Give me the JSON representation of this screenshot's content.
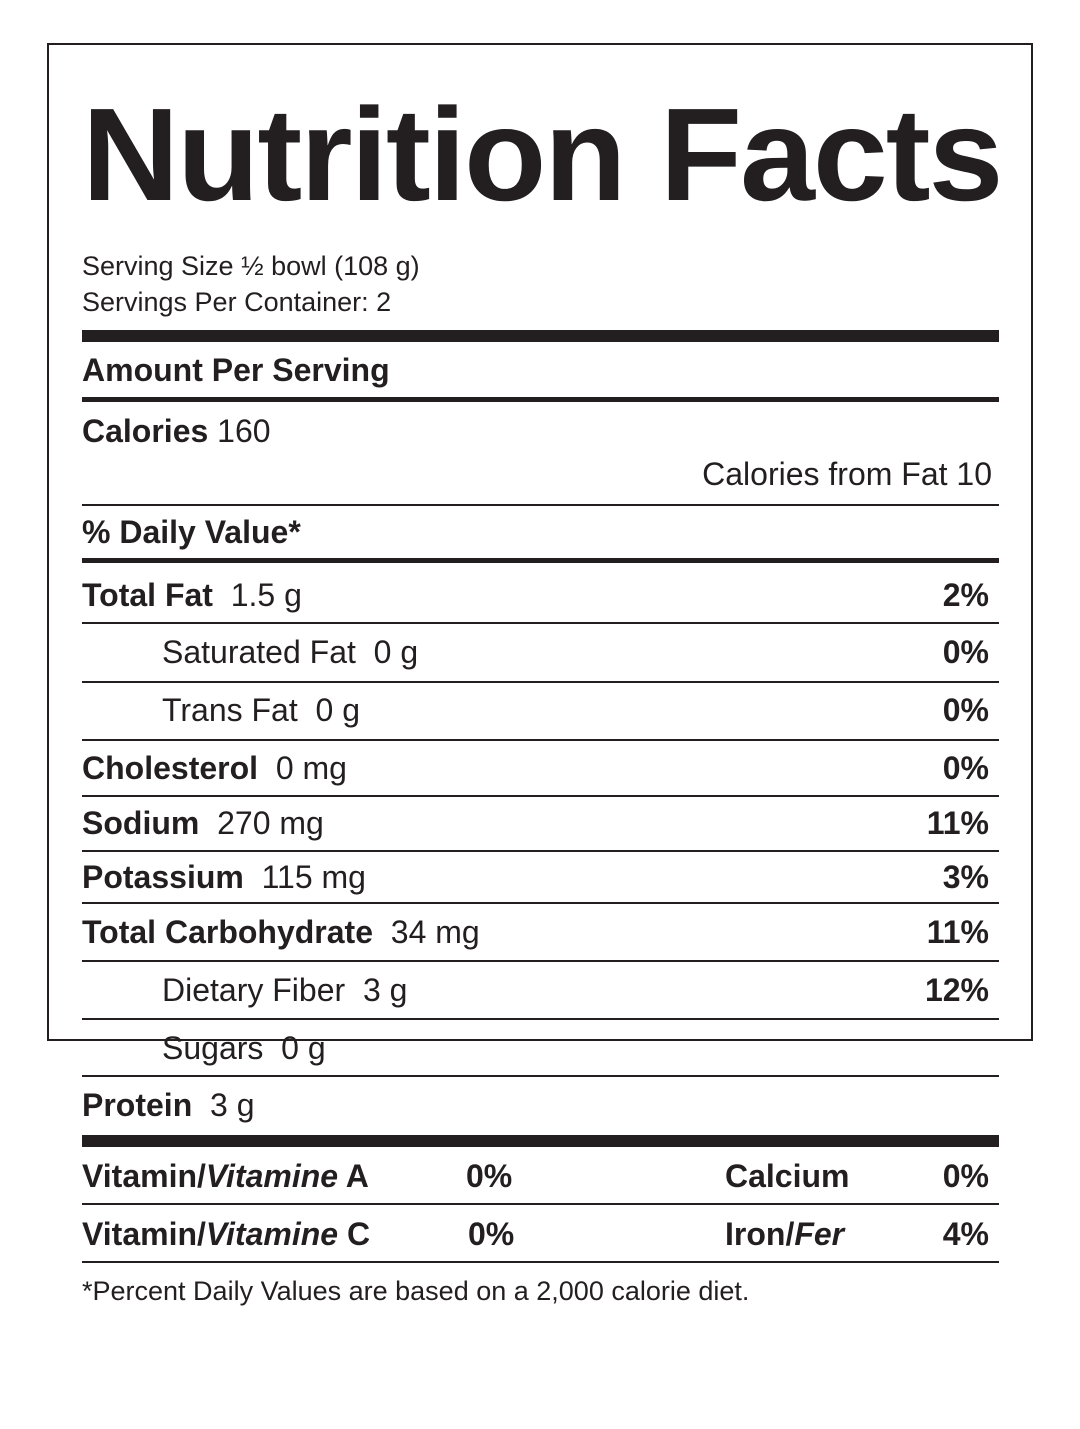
{
  "title": "Nutrition Facts",
  "serving": {
    "size": "Serving Size ½ bowl (108 g)",
    "per_container": "Servings Per Container: 2"
  },
  "amount_heading": "Amount Per Serving",
  "calories": {
    "label": "Calories",
    "value": "160"
  },
  "calories_from_fat": "Calories from Fat 10",
  "daily_value_heading": "% Daily Value*",
  "nutrients": {
    "total_fat": {
      "label": "Total Fat",
      "amount": "1.5 g",
      "pct": "2%"
    },
    "saturated_fat": {
      "label": "Saturated Fat",
      "amount": "0 g",
      "pct": "0%"
    },
    "trans_fat": {
      "label": "Trans Fat",
      "amount": "0 g",
      "pct": "0%"
    },
    "cholesterol": {
      "label": "Cholesterol",
      "amount": "0 mg",
      "pct": "0%"
    },
    "sodium": {
      "label": "Sodium",
      "amount": "270 mg",
      "pct": "11%"
    },
    "potassium": {
      "label": "Potassium",
      "amount": "115 mg",
      "pct": "3%"
    },
    "total_carbohydrate": {
      "label": "Total Carbohydrate",
      "amount": "34 mg",
      "pct": "11%"
    },
    "dietary_fiber": {
      "label": "Dietary Fiber",
      "amount": "3 g",
      "pct": "12%"
    },
    "sugars": {
      "label": "Sugars",
      "amount": "0 g"
    },
    "protein": {
      "label": "Protein",
      "amount": "3 g"
    }
  },
  "vitamins": {
    "vitamin_a": {
      "label_en": "Vitamin/",
      "label_fr": "Vitamine",
      "letter": " A",
      "pct": "0%"
    },
    "vitamin_c": {
      "label_en": "Vitamin/",
      "label_fr": "Vitamine",
      "letter": " C",
      "pct": "0%"
    },
    "calcium": {
      "label": "Calcium",
      "pct": "0%"
    },
    "iron": {
      "label_en": "Iron/",
      "label_fr": "Fer",
      "pct": "4%"
    }
  },
  "footnote": "*Percent Daily Values are based on a 2,000 calorie diet.",
  "colors": {
    "ink": "#231f20",
    "background": "#ffffff"
  }
}
